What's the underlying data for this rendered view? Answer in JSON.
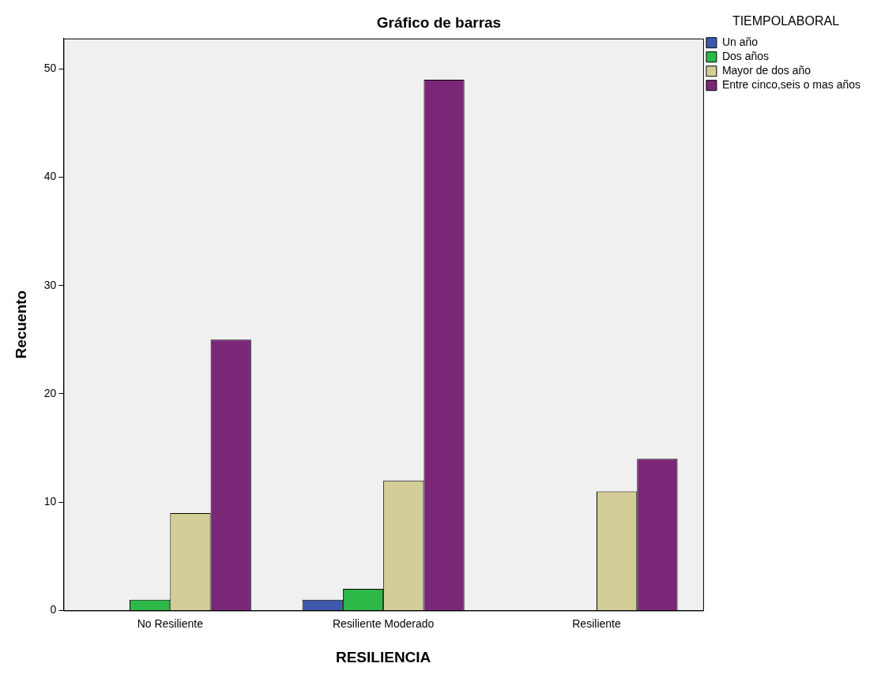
{
  "chart_data": {
    "type": "bar",
    "title": "Gráfico de barras",
    "xlabel": "RESILIENCIA",
    "ylabel": "Recuento",
    "legend_title": "TIEMPOLABORAL",
    "categories": [
      "No Resiliente",
      "Resiliente Moderado",
      "Resiliente"
    ],
    "series": [
      {
        "name": "Un año",
        "color": "#3e58ac",
        "values": [
          0,
          1,
          0
        ]
      },
      {
        "name": "Dos años",
        "color": "#2eb848",
        "values": [
          1,
          2,
          0
        ]
      },
      {
        "name": "Mayor de dos año",
        "color": "#d3ce97",
        "values": [
          9,
          12,
          11
        ]
      },
      {
        "name": "Entre cinco,seis o mas años",
        "color": "#7b2778",
        "values": [
          25,
          49,
          14
        ]
      }
    ],
    "ylim": [
      0,
      52.8
    ],
    "yticks": [
      0,
      10,
      20,
      30,
      40,
      50
    ],
    "grid": false,
    "legend": "top right"
  }
}
